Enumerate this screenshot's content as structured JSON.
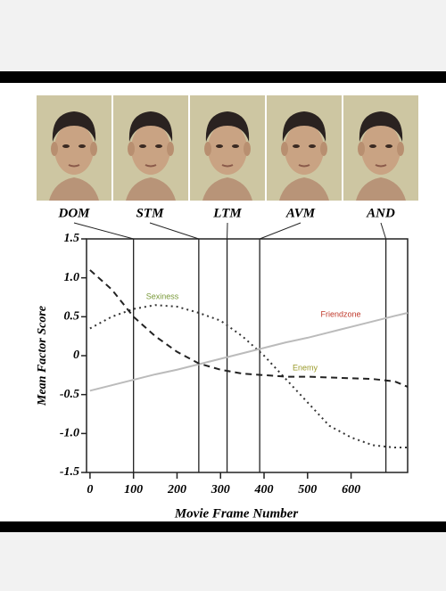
{
  "chart_data": {
    "type": "line",
    "y_label": "Mean Factor Score",
    "x_label": "Movie Frame Number",
    "x": [
      0,
      50,
      100,
      150,
      200,
      250,
      300,
      350,
      400,
      450,
      500,
      550,
      600,
      650,
      700,
      730
    ],
    "series": [
      {
        "name": "Sexiness",
        "color": "#333333",
        "dash": "2 4",
        "label_color": "#7a9a3a",
        "values": [
          0.35,
          0.5,
          0.6,
          0.65,
          0.63,
          0.55,
          0.45,
          0.25,
          0.0,
          -0.3,
          -0.6,
          -0.9,
          -1.05,
          -1.15,
          -1.18,
          -1.18
        ]
      },
      {
        "name": "Friendzone",
        "color": "#bbbbbb",
        "dash": "none",
        "label_color": "#c0392b",
        "values": [
          -0.45,
          -0.38,
          -0.31,
          -0.24,
          -0.18,
          -0.11,
          -0.04,
          0.03,
          0.1,
          0.17,
          0.23,
          0.3,
          0.37,
          0.44,
          0.51,
          0.55
        ]
      },
      {
        "name": "Enemy",
        "color": "#222222",
        "dash": "7 5",
        "label_color": "#9a9a2a",
        "values": [
          1.1,
          0.85,
          0.5,
          0.25,
          0.05,
          -0.1,
          -0.18,
          -0.23,
          -0.25,
          -0.27,
          -0.27,
          -0.28,
          -0.29,
          -0.3,
          -0.33,
          -0.4
        ]
      }
    ],
    "markers": [
      {
        "label": "DOM",
        "x": 100
      },
      {
        "label": "STM",
        "x": 250
      },
      {
        "label": "LTM",
        "x": 315
      },
      {
        "label": "AVM",
        "x": 390
      },
      {
        "label": "AND",
        "x": 680
      }
    ],
    "xlim": [
      -8,
      730
    ],
    "ylim": [
      -1.5,
      1.5
    ],
    "xticks": [
      0,
      100,
      200,
      300,
      400,
      500,
      600
    ],
    "yticks": [
      1.5,
      {
        "value": 1,
        "label": "1.0"
      },
      0.5,
      0,
      -0.5,
      {
        "value": -1,
        "label": "-1.0"
      },
      -1.5
    ]
  }
}
